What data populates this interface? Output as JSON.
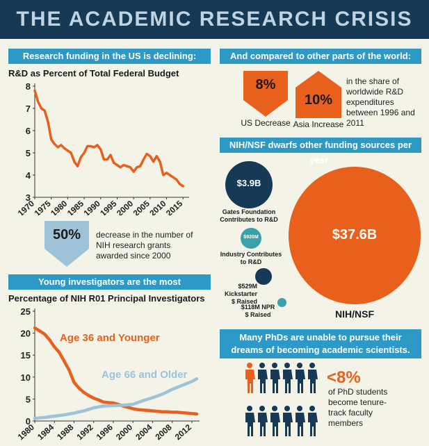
{
  "header": {
    "title": "THE ACADEMIC RESEARCH CRISIS"
  },
  "sections": {
    "us_funding": "Research funding in the US is declining:",
    "world": "And compared to other parts of the world:",
    "nih_nsf": "NIH/NSF dwarfs other funding sources per year:",
    "young": "Young investigators are the most underfunded.",
    "phd": "Many PhDs are unable to pursue their dreams of becoming academic scientists."
  },
  "stat_50": {
    "value": "50%",
    "desc": "decrease in the number of NIH research grants awarded since 2000"
  },
  "stat_world": {
    "us_value": "8%",
    "us_label": "US Decrease",
    "asia_value": "10%",
    "asia_label": "Asia Increase",
    "desc": "in the share of worldwide R&D expenditures between 1996 and 2011"
  },
  "bubbles": {
    "gates_value": "$3.9B",
    "gates_label": "Gates Foundation Contributes to R&D",
    "industry_value": "$920M",
    "industry_label": "Industry Contributes to R&D",
    "kick_label": "$529M Kickstarter $ Raised",
    "npr_label": "$118M NPR $ Raised",
    "nih_value": "$37.6B",
    "nih_label": "NIH/NSF"
  },
  "phd_stat": {
    "value": "<8%",
    "desc": "of PhD students become tenure-track faculty members"
  },
  "colors": {
    "navy": "#163a55",
    "blue": "#2d99c6",
    "orange": "#e8601c",
    "light_blue": "#9ec3d9",
    "teal": "#3aa1aa"
  },
  "chart_data": [
    {
      "type": "line",
      "title": "R&D as Percent of Total Federal Budget",
      "x_ticks": [
        1970,
        1975,
        1980,
        1985,
        1990,
        1995,
        2000,
        2005,
        2010,
        2015
      ],
      "y_ticks": [
        3,
        4,
        5,
        6,
        7,
        8
      ],
      "ylim": [
        3,
        8
      ],
      "xlim": [
        1970,
        2016
      ],
      "series": [
        {
          "color": "#e8601c",
          "x": [
            1970,
            1971,
            1972,
            1973,
            1974,
            1975,
            1976,
            1977,
            1978,
            1979,
            1980,
            1981,
            1982,
            1983,
            1984,
            1985,
            1986,
            1987,
            1988,
            1989,
            1990,
            1991,
            1992,
            1993,
            1994,
            1995,
            1996,
            1997,
            1998,
            1999,
            2000,
            2001,
            2002,
            2003,
            2004,
            2005,
            2006,
            2007,
            2008,
            2009,
            2010,
            2011,
            2012,
            2013,
            2014,
            2015
          ],
          "y": [
            7.8,
            7.3,
            7.0,
            6.9,
            6.4,
            5.6,
            5.4,
            5.25,
            5.35,
            5.2,
            5.1,
            5.0,
            4.6,
            4.4,
            4.8,
            5.0,
            5.3,
            5.3,
            5.25,
            5.35,
            5.15,
            4.7,
            4.7,
            4.9,
            4.55,
            4.45,
            4.35,
            4.45,
            4.4,
            4.35,
            4.15,
            4.35,
            4.4,
            4.7,
            4.95,
            4.85,
            4.6,
            4.85,
            4.6,
            4.0,
            4.1,
            4.0,
            3.9,
            3.8,
            3.6,
            3.5
          ]
        }
      ]
    },
    {
      "type": "line",
      "title": "Percentage of NIH R01 Principal Investigators",
      "x_ticks": [
        1980,
        1984,
        1988,
        1992,
        1996,
        2000,
        2004,
        2008,
        2012
      ],
      "y_ticks": [
        0,
        5,
        10,
        15,
        20,
        25
      ],
      "ylim": [
        0,
        25
      ],
      "xlim": [
        1980,
        2013
      ],
      "series": [
        {
          "name": "Age 36 and Younger",
          "color": "#e8601c",
          "x": [
            1980,
            1981,
            1982,
            1983,
            1984,
            1985,
            1986,
            1987,
            1988,
            1989,
            1990,
            1991,
            1992,
            1993,
            1994,
            1995,
            1996,
            1997,
            1998,
            1999,
            2000,
            2001,
            2002,
            2003,
            2004,
            2005,
            2006,
            2007,
            2008,
            2009,
            2010,
            2011,
            2012,
            2013
          ],
          "y": [
            21.2,
            20.5,
            19.8,
            18.5,
            16.9,
            15.6,
            13.6,
            11.6,
            8.8,
            7.5,
            6.5,
            5.8,
            5.2,
            4.8,
            4.3,
            4.2,
            4.1,
            3.8,
            3.4,
            3.1,
            2.8,
            2.6,
            2.5,
            2.4,
            2.3,
            2.2,
            2.1,
            2.1,
            2.0,
            2.0,
            1.9,
            1.8,
            1.7,
            1.6
          ]
        },
        {
          "name": "Age 66 and Older",
          "color": "#9ec3d9",
          "x": [
            1980,
            1982,
            1984,
            1986,
            1988,
            1990,
            1992,
            1994,
            1996,
            1998,
            2000,
            2002,
            2004,
            2006,
            2008,
            2010,
            2012,
            2013
          ],
          "y": [
            0.6,
            0.8,
            1.1,
            1.4,
            1.8,
            2.3,
            3.0,
            3.4,
            3.5,
            3.6,
            3.8,
            4.6,
            5.3,
            6.1,
            7.2,
            8.1,
            9.0,
            9.6
          ]
        }
      ]
    }
  ]
}
